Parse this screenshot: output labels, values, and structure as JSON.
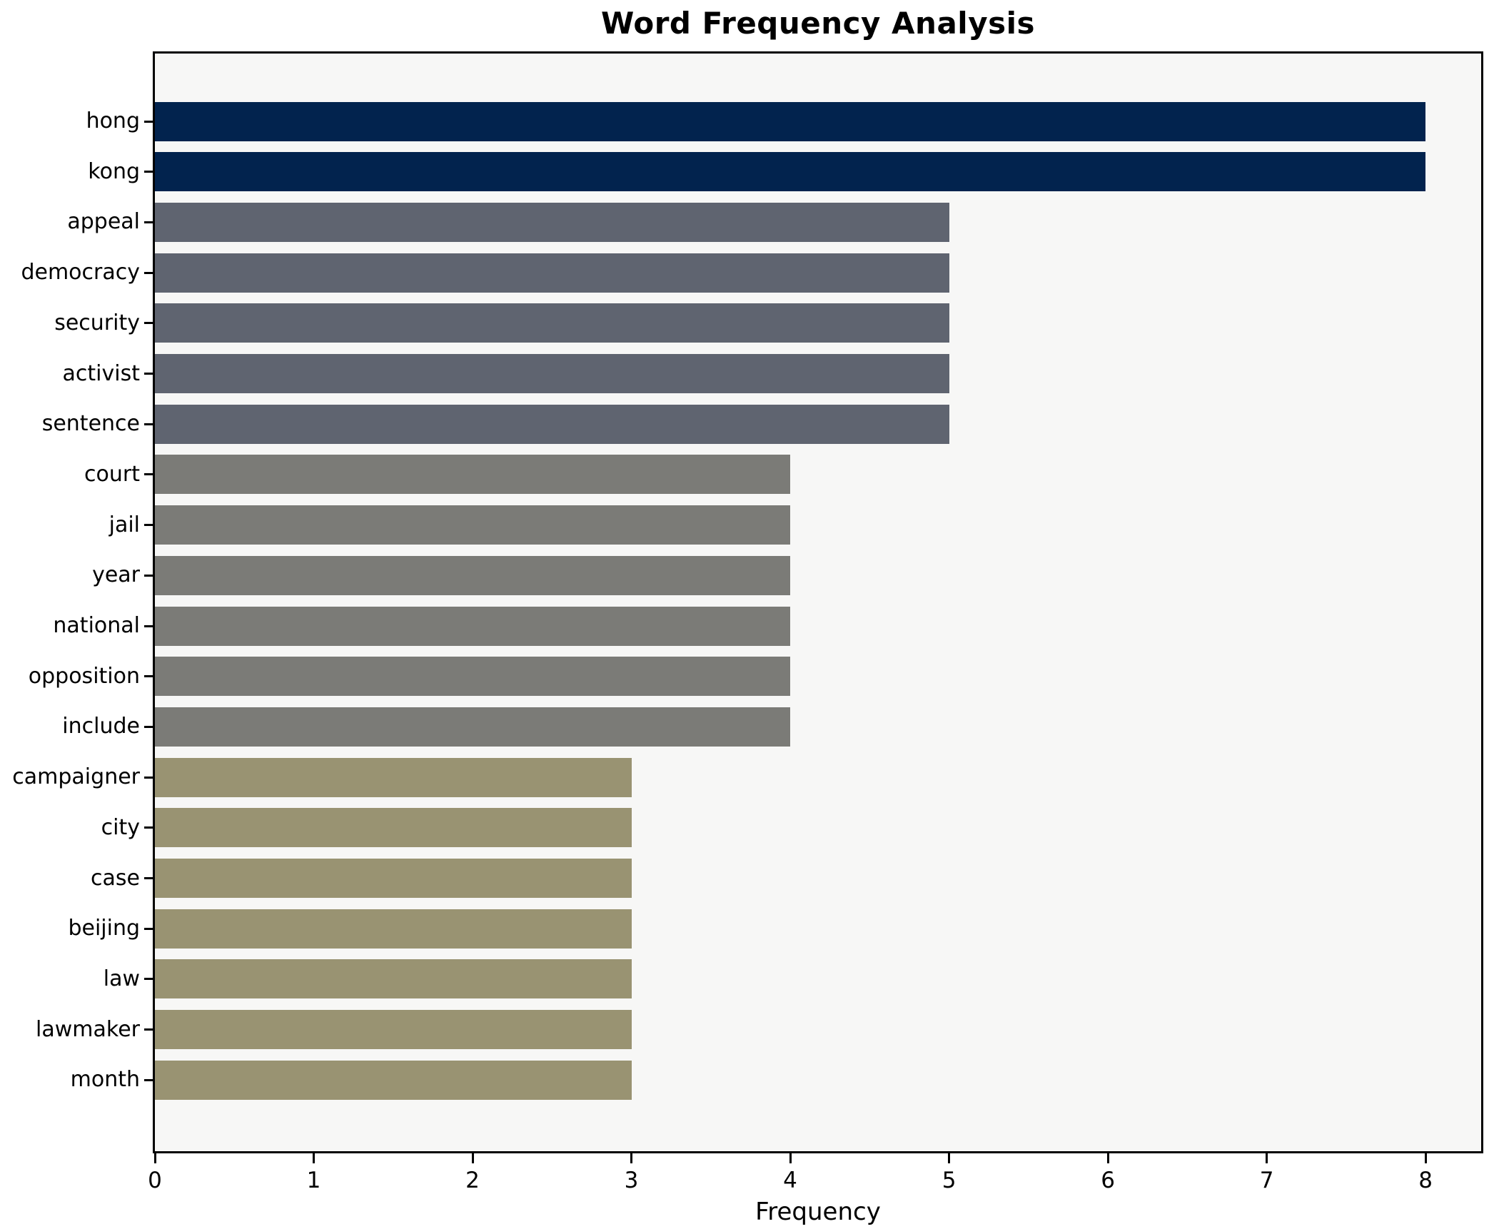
{
  "figure": {
    "background": "#ffffff",
    "plot_background": "#f7f7f6",
    "axis_color": "#000000"
  },
  "chart_data": {
    "type": "bar",
    "orientation": "horizontal",
    "title": "Word Frequency Analysis",
    "xlabel": "Frequency",
    "ylabel": "",
    "categories": [
      "hong",
      "kong",
      "appeal",
      "democracy",
      "security",
      "activist",
      "sentence",
      "court",
      "jail",
      "year",
      "national",
      "opposition",
      "include",
      "campaigner",
      "city",
      "case",
      "beijing",
      "law",
      "lawmaker",
      "month"
    ],
    "values": [
      8,
      8,
      5,
      5,
      5,
      5,
      5,
      4,
      4,
      4,
      4,
      4,
      4,
      3,
      3,
      3,
      3,
      3,
      3,
      3
    ],
    "bar_colors": [
      "#02234e",
      "#02234e",
      "#5f6470",
      "#5f6470",
      "#5f6470",
      "#5f6470",
      "#5f6470",
      "#7b7b77",
      "#7b7b77",
      "#7b7b77",
      "#7b7b77",
      "#7b7b77",
      "#7b7b77",
      "#999372",
      "#999372",
      "#999372",
      "#999372",
      "#999372",
      "#999372",
      "#999372"
    ],
    "xticks": [
      0,
      1,
      2,
      3,
      4,
      5,
      6,
      7,
      8
    ],
    "xlim": [
      0,
      8.35
    ],
    "grid": false,
    "legend": null
  }
}
